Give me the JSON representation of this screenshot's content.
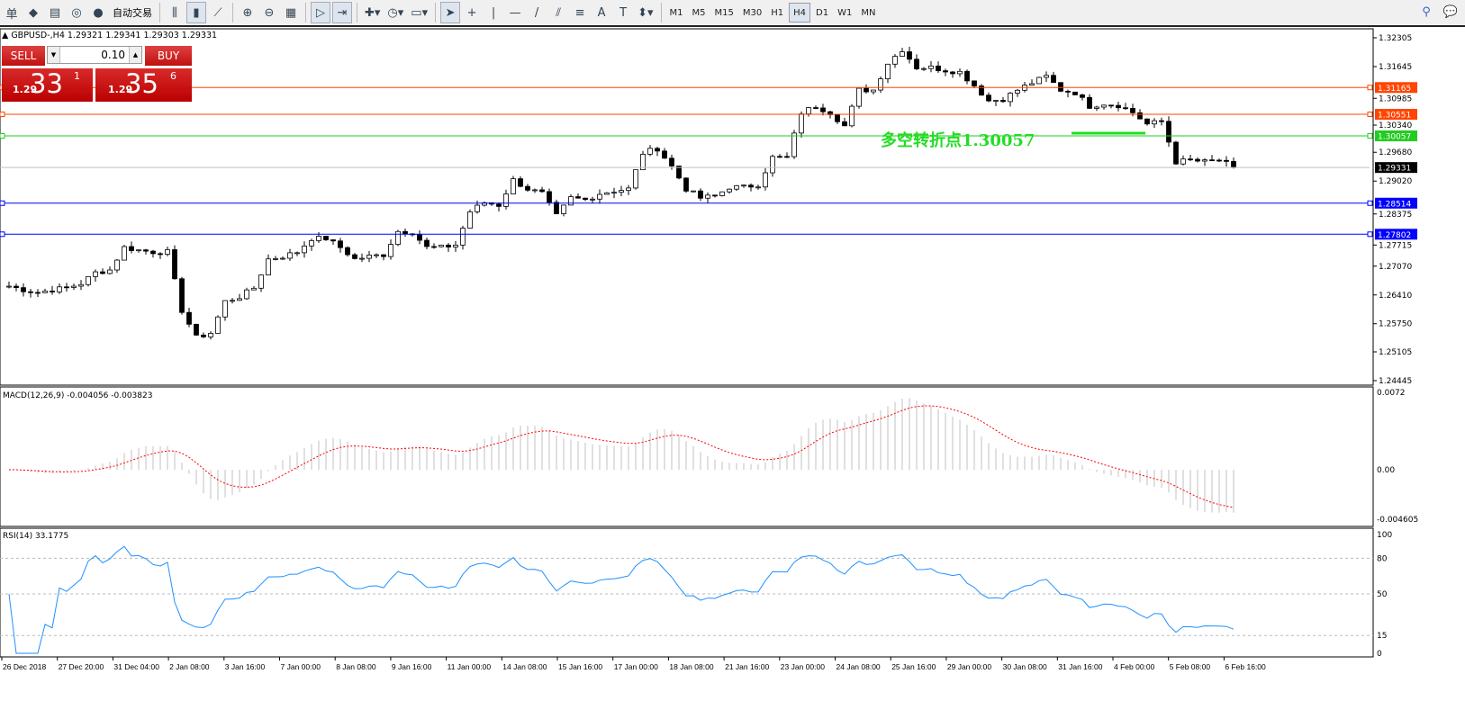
{
  "toolbar": {
    "items": [
      {
        "name": "menu-fragment",
        "glyph": "单"
      },
      {
        "name": "gold-icon",
        "glyph": "◆"
      },
      {
        "name": "book-icon",
        "glyph": "▤"
      },
      {
        "name": "signal-icon",
        "glyph": "◎"
      },
      {
        "name": "auto-trading-icon",
        "glyph": "●"
      }
    ],
    "auto_trading_label": "自动交易",
    "chart_tools": [
      {
        "name": "bar-chart-icon",
        "glyph": "⫼"
      },
      {
        "name": "candlestick-icon",
        "glyph": "▮",
        "active": true
      },
      {
        "name": "line-chart-icon",
        "glyph": "⟋"
      },
      {
        "name": "zoom-in-icon",
        "glyph": "⊕"
      },
      {
        "name": "zoom-out-icon",
        "glyph": "⊖"
      },
      {
        "name": "tile-windows-icon",
        "glyph": "▦"
      },
      {
        "name": "autoscroll-icon",
        "glyph": "▷",
        "active": true
      },
      {
        "name": "chart-shift-icon",
        "glyph": "⇥",
        "active": true
      },
      {
        "name": "indicators-icon",
        "glyph": "✚▾"
      },
      {
        "name": "periods-icon",
        "glyph": "◷▾"
      },
      {
        "name": "templates-icon",
        "glyph": "▭▾"
      },
      {
        "name": "cursor-icon",
        "glyph": "➤",
        "active": true
      },
      {
        "name": "crosshair-icon",
        "glyph": "+"
      },
      {
        "name": "vertical-line-icon",
        "glyph": "|"
      },
      {
        "name": "horizontal-line-icon",
        "glyph": "—"
      },
      {
        "name": "trendline-icon",
        "glyph": "/"
      },
      {
        "name": "equidistant-channel-icon",
        "glyph": "⫽"
      },
      {
        "name": "fibonacci-icon",
        "glyph": "≡"
      },
      {
        "name": "text-icon",
        "glyph": "A"
      },
      {
        "name": "text-label-icon",
        "glyph": "T"
      },
      {
        "name": "arrows-icon",
        "glyph": "⬍▾"
      }
    ],
    "timeframes": [
      "M1",
      "M5",
      "M15",
      "M30",
      "H1",
      "H4",
      "D1",
      "W1",
      "MN"
    ],
    "active_timeframe": "H4"
  },
  "symbol_info": "▲ GBPUSD-,H4  1.29321 1.29341 1.29303 1.29331",
  "trade_panel": {
    "sell_label": "SELL",
    "buy_label": "BUY",
    "volume": "0.10",
    "sell_prefix": "1.29",
    "sell_big": "33",
    "sell_sup": "1",
    "buy_prefix": "1.29",
    "buy_big": "35",
    "buy_sup": "6"
  },
  "annotation": {
    "text": "多空转折点1.30057",
    "color": "#22dd22"
  },
  "hlines": [
    {
      "price": 1.31165,
      "label": "1.31165",
      "color": "#ff4500"
    },
    {
      "price": 1.30551,
      "label": "1.30551",
      "color": "#ff4500"
    },
    {
      "price": 1.30057,
      "label": "1.30057",
      "color": "#22cc22"
    },
    {
      "price": 1.29331,
      "label": "1.29331",
      "color": "#000000",
      "line": "#c0c0c0"
    },
    {
      "price": 1.28514,
      "label": "1.28514",
      "color": "#0000ff"
    },
    {
      "price": 1.27802,
      "label": "1.27802",
      "color": "#0000ff"
    }
  ],
  "price_axis": [
    "1.32305",
    "1.31645",
    "1.30985",
    "1.30340",
    "1.29680",
    "1.29020",
    "1.28375",
    "1.27715",
    "1.27070",
    "1.26410",
    "1.25750",
    "1.25105",
    "1.24445"
  ],
  "macd": {
    "label": "MACD(12,26,9) -0.004056 -0.003823",
    "axis": [
      "0.0072",
      "0.00",
      "-0.004605"
    ],
    "signal_color": "#ff0000",
    "hist_color": "#c0c0c0"
  },
  "rsi": {
    "label": "RSI(14) 33.1775",
    "axis": [
      "100",
      "80",
      "50",
      "15",
      "0"
    ],
    "color": "#1e90ff"
  },
  "time_axis": [
    "26 Dec 2018",
    "27 Dec 20:00",
    "31 Dec 04:00",
    "2 Jan 08:00",
    "3 Jan 16:00",
    "7 Jan 00:00",
    "8 Jan 08:00",
    "9 Jan 16:00",
    "11 Jan 00:00",
    "14 Jan 08:00",
    "15 Jan 16:00",
    "17 Jan 00:00",
    "18 Jan 08:00",
    "21 Jan 16:00",
    "23 Jan 00:00",
    "24 Jan 08:00",
    "25 Jan 16:00",
    "29 Jan 00:00",
    "30 Jan 08:00",
    "31 Jan 16:00",
    "4 Feb 00:00",
    "5 Feb 08:00",
    "6 Feb 16:00"
  ],
  "chart_data": {
    "type": "candlestick",
    "symbol": "GBPUSD",
    "timeframe": "H4",
    "ylim": [
      1.24445,
      1.32305
    ],
    "approx_closes": [
      1.26611,
      1.26529,
      1.26467,
      1.26529,
      1.2657,
      1.26673,
      1.26921,
      1.26982,
      1.27498,
      1.27436,
      1.27395,
      1.27395,
      1.26054,
      1.25435,
      1.25538,
      1.2626,
      1.26364,
      1.2657,
      1.2723,
      1.27292,
      1.27395,
      1.27705,
      1.27705,
      1.27498,
      1.2723,
      1.27292,
      1.27333,
      1.2787,
      1.27849,
      1.27498,
      1.27498,
      1.2756,
      1.28323,
      1.2853,
      1.28468,
      1.29045,
      1.28839,
      1.28736,
      1.2822,
      1.28633,
      1.28592,
      1.28736,
      1.28798,
      1.28839,
      1.29664,
      1.29768,
      1.29355,
      1.28839,
      1.28633,
      1.28674,
      1.2888,
      1.2888,
      1.28942,
      1.29561,
      1.29561,
      1.30593,
      1.30737,
      1.30593,
      1.30283,
      1.31108,
      1.31108,
      1.31727,
      1.32037,
      1.31624,
      1.31624,
      1.31562,
      1.31521,
      1.31212,
      1.30861,
      1.30902,
      1.31108,
      1.31273,
      1.31418,
      1.31108,
      1.31047,
      1.30737,
      1.30799,
      1.30758,
      1.30593,
      1.30325,
      1.30386,
      1.29458,
      1.29499,
      1.29458,
      1.29499,
      1.29331
    ]
  }
}
